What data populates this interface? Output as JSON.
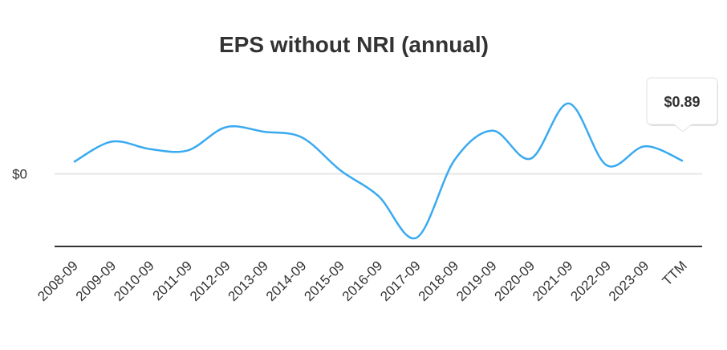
{
  "chart_data": {
    "type": "line",
    "title": "EPS without NRI (annual)",
    "xlabel": "",
    "ylabel": "",
    "categories": [
      "2008-09",
      "2009-09",
      "2010-09",
      "2011-09",
      "2012-09",
      "2013-09",
      "2014-09",
      "2015-09",
      "2016-09",
      "2017-09",
      "2018-09",
      "2019-09",
      "2020-09",
      "2021-09",
      "2022-09",
      "2023-09",
      "TTM"
    ],
    "series": [
      {
        "values": [
          0.82,
          2.22,
          1.71,
          1.62,
          3.22,
          2.9,
          2.5,
          0.25,
          -1.52,
          -4.4,
          0.95,
          2.98,
          1.05,
          4.85,
          0.59,
          1.9,
          0.89
        ]
      }
    ],
    "ylim": [
      -5.0,
      7.0
    ],
    "yticks": [
      {
        "value": 0,
        "label": "$0"
      }
    ],
    "grid": true,
    "legend": "none",
    "line_color": "#3aaaf0",
    "tooltip": {
      "category": "TTM",
      "label": "$0.89"
    }
  }
}
